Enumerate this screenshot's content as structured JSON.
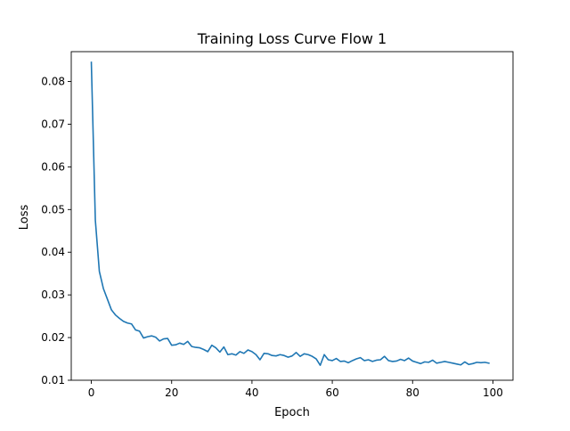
{
  "colors": {
    "background": "#ffffff",
    "axes": "#000000",
    "line": "#1f77b4"
  },
  "chart_data": {
    "type": "line",
    "title": "Training Loss Curve Flow 1",
    "xlabel": "Epoch",
    "ylabel": "Loss",
    "xlim": [
      -5,
      105
    ],
    "ylim": [
      0.01,
      0.087
    ],
    "x_ticks": [
      0,
      20,
      40,
      60,
      80,
      100
    ],
    "x_tick_labels": [
      "0",
      "20",
      "40",
      "60",
      "80",
      "100"
    ],
    "y_ticks": [
      0.01,
      0.02,
      0.03,
      0.04,
      0.05,
      0.06,
      0.07,
      0.08
    ],
    "y_tick_labels": [
      "0.01",
      "0.02",
      "0.03",
      "0.04",
      "0.05",
      "0.06",
      "0.07",
      "0.08"
    ],
    "grid": false,
    "legend": null,
    "series": [
      {
        "color": "#1f77b4",
        "x": [
          0,
          1,
          2,
          3,
          4,
          5,
          6,
          7,
          8,
          9,
          10,
          11,
          12,
          13,
          14,
          15,
          16,
          17,
          18,
          19,
          20,
          21,
          22,
          23,
          24,
          25,
          26,
          27,
          28,
          29,
          30,
          31,
          32,
          33,
          34,
          35,
          36,
          37,
          38,
          39,
          40,
          41,
          42,
          43,
          44,
          45,
          46,
          47,
          48,
          49,
          50,
          51,
          52,
          53,
          54,
          55,
          56,
          57,
          58,
          59,
          60,
          61,
          62,
          63,
          64,
          65,
          66,
          67,
          68,
          69,
          70,
          71,
          72,
          73,
          74,
          75,
          76,
          77,
          78,
          79,
          80,
          81,
          82,
          83,
          84,
          85,
          86,
          87,
          88,
          89,
          90,
          91,
          92,
          93,
          94,
          95,
          96,
          97,
          98,
          99
        ],
        "y": [
          0.0845,
          0.0475,
          0.0355,
          0.0315,
          0.029,
          0.0265,
          0.0253,
          0.0245,
          0.0238,
          0.0234,
          0.0232,
          0.0218,
          0.0215,
          0.0199,
          0.0202,
          0.0204,
          0.0201,
          0.0192,
          0.0197,
          0.0198,
          0.0182,
          0.0183,
          0.0187,
          0.0184,
          0.0191,
          0.0179,
          0.0177,
          0.0176,
          0.0172,
          0.0167,
          0.0182,
          0.0176,
          0.0166,
          0.0178,
          0.016,
          0.0162,
          0.0159,
          0.0167,
          0.0163,
          0.0171,
          0.0167,
          0.016,
          0.0148,
          0.0163,
          0.0162,
          0.0158,
          0.0157,
          0.016,
          0.0158,
          0.0154,
          0.0157,
          0.0165,
          0.0156,
          0.0162,
          0.016,
          0.0156,
          0.015,
          0.0135,
          0.016,
          0.0148,
          0.0146,
          0.0151,
          0.0144,
          0.0145,
          0.0141,
          0.0146,
          0.015,
          0.0153,
          0.0146,
          0.0148,
          0.0144,
          0.0147,
          0.0148,
          0.0156,
          0.0146,
          0.0144,
          0.0145,
          0.0149,
          0.0146,
          0.0152,
          0.0145,
          0.0142,
          0.0139,
          0.0143,
          0.0142,
          0.0147,
          0.014,
          0.0142,
          0.0144,
          0.0142,
          0.014,
          0.0138,
          0.0136,
          0.0143,
          0.0137,
          0.0139,
          0.0142,
          0.0141,
          0.0142,
          0.014
        ]
      }
    ]
  }
}
